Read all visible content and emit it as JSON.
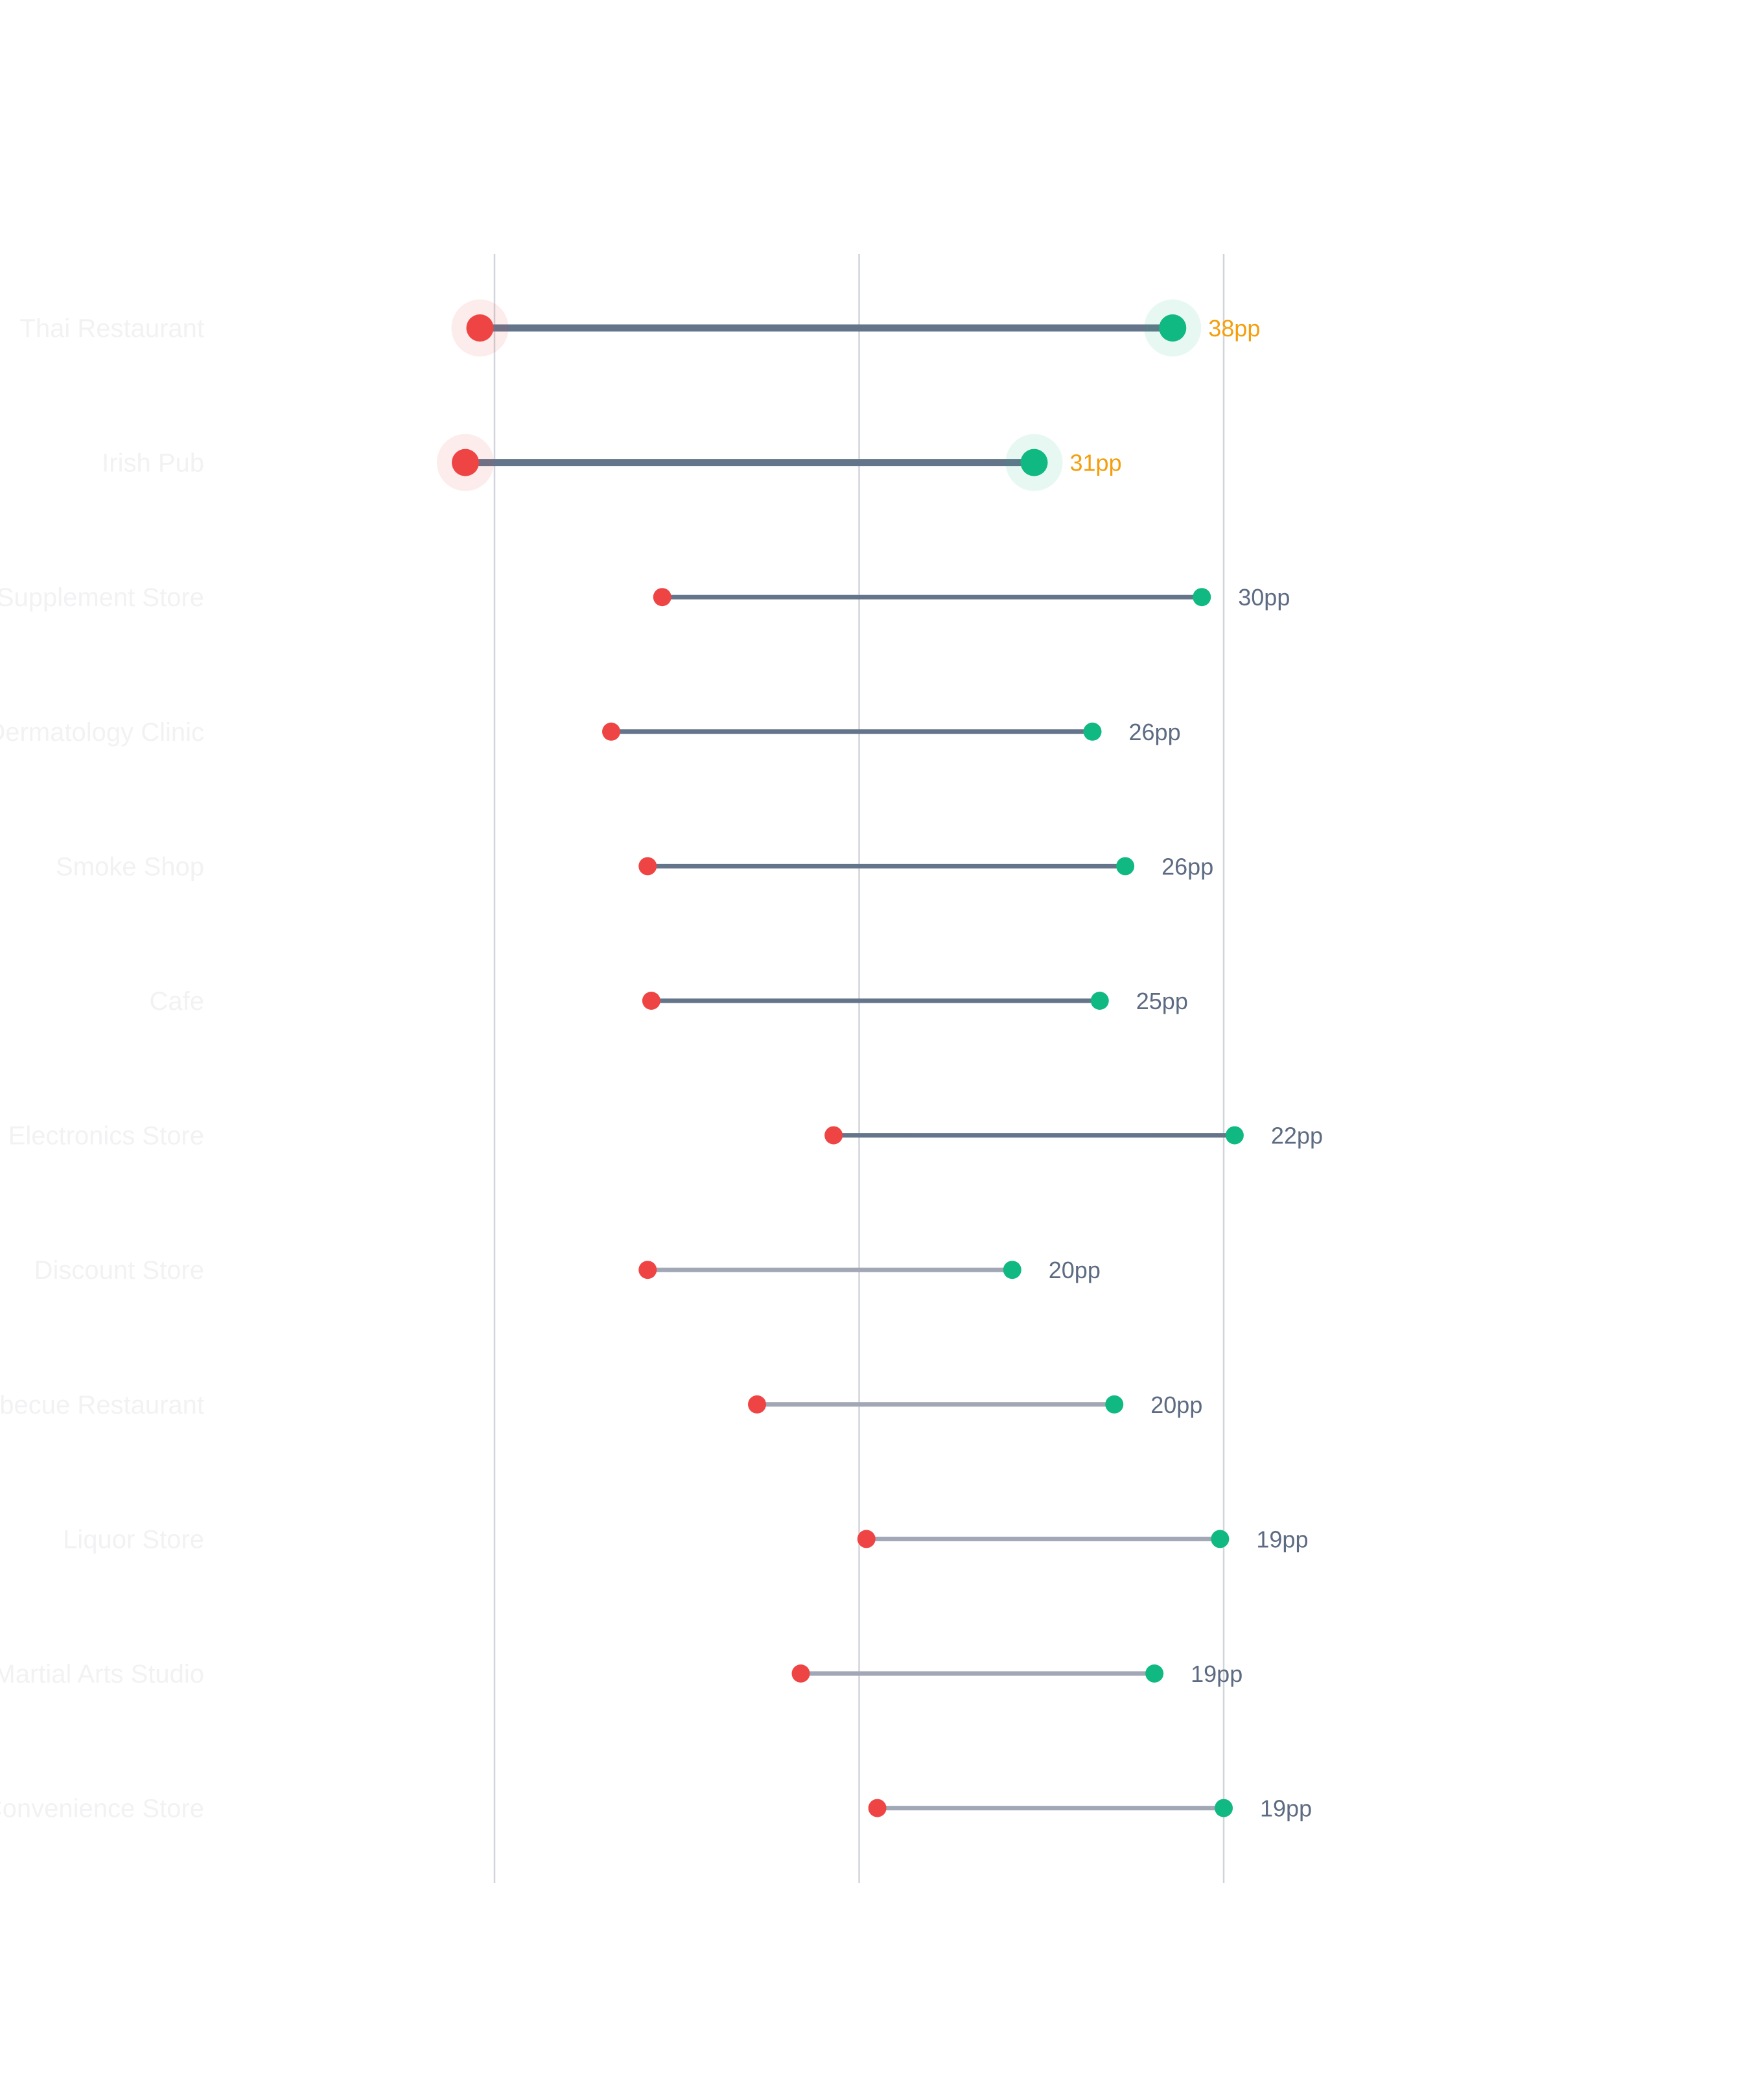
{
  "chart_data": {
    "type": "dumbbell",
    "categories": [
      "Thai Restaurant",
      "Irish Pub",
      "Supplement Store",
      "Dermatology Clinic",
      "Smoke Shop",
      "Cafe",
      "Electronics Store",
      "Discount Store",
      "Barbecue Restaurant",
      "Liquor Store",
      "Martial Arts Studio",
      "Convenience Store"
    ],
    "series": [
      {
        "values": [
          -2,
          -4,
          23,
          16,
          21,
          21.5,
          46.5,
          21,
          36,
          51,
          42,
          52.5
        ]
      },
      {
        "values": [
          93,
          74,
          97,
          82,
          86.5,
          83,
          101.5,
          71,
          85,
          99.5,
          90.5,
          100
        ]
      }
    ],
    "gap_labels": [
      "38pp",
      "31pp",
      "30pp",
      "26pp",
      "26pp",
      "25pp",
      "22pp",
      "20pp",
      "20pp",
      "19pp",
      "19pp",
      "19pp"
    ],
    "highlighted": [
      true,
      true,
      false,
      false,
      false,
      false,
      false,
      false,
      false,
      false,
      false,
      false
    ],
    "xlim": [
      -5,
      105
    ],
    "grid_x": [
      0,
      50,
      100
    ],
    "grid": true,
    "colors": {
      "start": "#ef4444",
      "end": "#10b981",
      "line_strong": "#64748b",
      "line_muted": "#a1a7b5",
      "highlight_label": "#f59e0b",
      "label": "#5d6b82",
      "grid": "#d1d5db"
    }
  }
}
